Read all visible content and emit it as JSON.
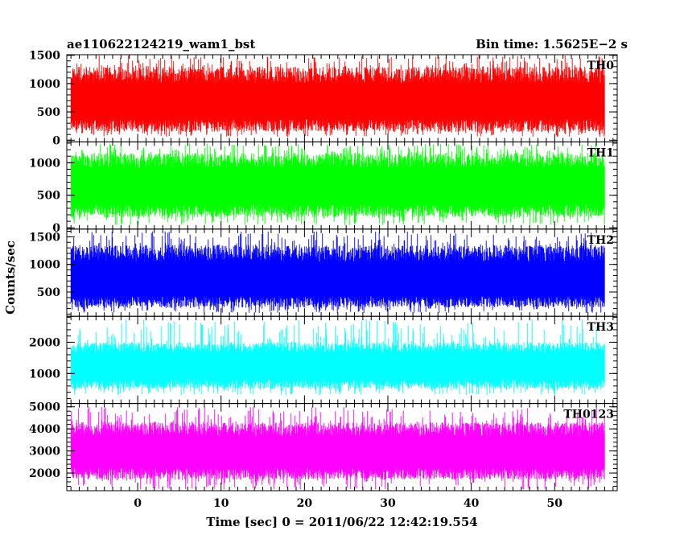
{
  "header": {
    "title": "ae110622124219_wam1_bst",
    "bin_time": "Bin time: 1.5625E−2 s"
  },
  "chart_data": {
    "type": "line",
    "title": "ae110622124219_wam1_bst",
    "xlabel": "Time [sec] 0 = 2011/06/22 12:42:19.554",
    "ylabel": "Counts/sec",
    "xlim": [
      -8.5,
      57.5
    ],
    "x_range_data": [
      -8,
      56
    ],
    "x_ticks": [
      0,
      10,
      20,
      30,
      40,
      50
    ],
    "x_tick_labels": [
      "0",
      "10",
      "20",
      "30",
      "40",
      "50"
    ],
    "grid": false,
    "panels": [
      {
        "name": "TH0",
        "color": "#ff0000",
        "ylim": [
          -30,
          1510
        ],
        "y_ticks": [
          0,
          500,
          1000,
          1500
        ],
        "y_tick_labels": [
          "0",
          "500",
          "1000",
          "1500"
        ],
        "mean": 650,
        "low": 150,
        "high": 1300,
        "max": 1500,
        "min": 60
      },
      {
        "name": "TH1",
        "color": "#00ff00",
        "ylim": [
          -20,
          1320
        ],
        "y_ticks": [
          0,
          500,
          1000
        ],
        "y_tick_labels": [
          "0",
          "500",
          "1000"
        ],
        "mean": 620,
        "low": 160,
        "high": 1150,
        "max": 1300,
        "min": 40
      },
      {
        "name": "TH2",
        "color": "#0000ff",
        "ylim": [
          60,
          1640
        ],
        "y_ticks": [
          500,
          1000,
          1500
        ],
        "y_tick_labels": [
          "500",
          "1000",
          "1500"
        ],
        "mean": 680,
        "low": 220,
        "high": 1350,
        "max": 1600,
        "min": 120
      },
      {
        "name": "TH3",
        "color": "#00ffff",
        "ylim": [
          40,
          2830
        ],
        "y_ticks": [
          1000,
          2000
        ],
        "y_tick_labels": [
          "1000",
          "2000"
        ],
        "mean": 1230,
        "low": 500,
        "high": 2000,
        "max": 2750,
        "min": 300
      },
      {
        "name": "TH0123",
        "color": "#ff00ff",
        "ylim": [
          1200,
          5150
        ],
        "y_ticks": [
          2000,
          3000,
          4000,
          5000
        ],
        "y_tick_labels": [
          "2000",
          "3000",
          "4000",
          "5000"
        ],
        "mean": 2900,
        "low": 1700,
        "high": 4300,
        "max": 5000,
        "min": 1250
      }
    ]
  }
}
